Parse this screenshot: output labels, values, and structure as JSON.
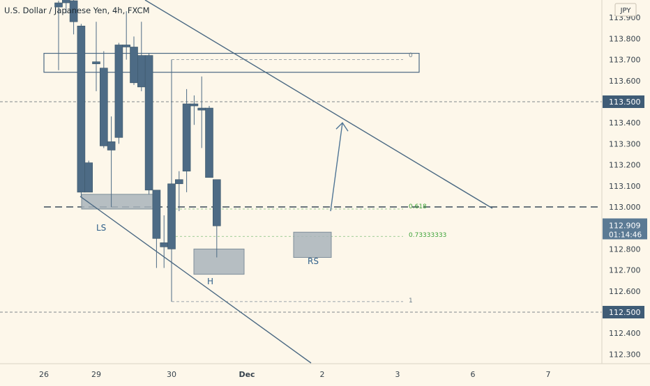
{
  "header": {
    "symbol_title": "U.S. Dollar / Japanese Yen, 4h, FXCM",
    "currency_badge": "JPY"
  },
  "colors": {
    "background": "#fdf7ea",
    "candle": "#4d6b85",
    "trendline": "#4a6882",
    "zone_fill": "#a9b4bb",
    "fib_label": "#3fa33a",
    "price_badge": "#3f5c76"
  },
  "price_axis": {
    "ticks": [
      "113.900",
      "113.800",
      "113.700",
      "113.600",
      "113.400",
      "113.300",
      "113.200",
      "113.100",
      "113.000",
      "112.800",
      "112.700",
      "112.600",
      "112.400",
      "112.300"
    ],
    "tick_values": [
      113.9,
      113.8,
      113.7,
      113.6,
      113.4,
      113.3,
      113.2,
      113.1,
      113.0,
      112.8,
      112.7,
      112.6,
      112.4,
      112.3
    ],
    "badges": [
      {
        "value": 113.5,
        "label": "113.500"
      },
      {
        "value": 112.5,
        "label": "112.500"
      }
    ],
    "current_price": {
      "value": 112.909,
      "label": "112.909",
      "countdown": "01:14:46"
    }
  },
  "time_axis": {
    "labels": [
      "26",
      "29",
      "30",
      "Dec",
      "2",
      "3",
      "6",
      "7"
    ],
    "label_bars": [
      -5,
      5,
      15,
      25,
      35,
      45,
      55,
      65
    ]
  },
  "annotations": {
    "left_shoulder": "LS",
    "head": "H",
    "right_shoulder": "RS",
    "fib_0": "0",
    "fib_0618": "0.618",
    "fib_0733": "0.73333333",
    "fib_1": "1"
  },
  "chart_data": {
    "type": "candlestick",
    "title": "U.S. Dollar / Japanese Yen, 4h, FXCM",
    "price_range": [
      112.25,
      113.97
    ],
    "horizontal_levels": [
      113.5,
      113.0,
      112.5
    ],
    "fib_levels": [
      {
        "label": "0",
        "price": 113.7
      },
      {
        "label": "0.618",
        "price": 112.99
      },
      {
        "label": "0.73333333",
        "price": 112.86
      },
      {
        "label": "1",
        "price": 112.55
      }
    ],
    "candles": [
      {
        "o": 113.95,
        "h": 113.98,
        "l": 113.65,
        "c": 113.97
      },
      {
        "o": 113.97,
        "h": 114.05,
        "l": 113.92,
        "c": 113.99
      },
      {
        "o": 113.98,
        "h": 114.0,
        "l": 113.82,
        "c": 113.88
      },
      {
        "o": 113.86,
        "h": 113.87,
        "l": 113.05,
        "c": 113.07
      },
      {
        "o": 113.07,
        "h": 113.22,
        "l": 113.07,
        "c": 113.21
      },
      {
        "o": 113.68,
        "h": 113.88,
        "l": 113.55,
        "c": 113.69
      },
      {
        "o": 113.66,
        "h": 113.74,
        "l": 113.28,
        "c": 113.29
      },
      {
        "o": 113.27,
        "h": 113.43,
        "l": 113.0,
        "c": 113.31
      },
      {
        "o": 113.33,
        "h": 113.78,
        "l": 113.3,
        "c": 113.77
      },
      {
        "o": 113.77,
        "h": 113.93,
        "l": 113.7,
        "c": 113.76
      },
      {
        "o": 113.76,
        "h": 113.81,
        "l": 113.58,
        "c": 113.59
      },
      {
        "o": 113.72,
        "h": 113.88,
        "l": 113.55,
        "c": 113.57
      },
      {
        "o": 113.72,
        "h": 113.73,
        "l": 113.06,
        "c": 113.08
      },
      {
        "o": 113.08,
        "h": 113.08,
        "l": 112.71,
        "c": 112.85
      },
      {
        "o": 112.83,
        "h": 112.96,
        "l": 112.71,
        "c": 112.81
      },
      {
        "o": 112.8,
        "h": 113.7,
        "l": 112.55,
        "c": 113.11
      },
      {
        "o": 113.11,
        "h": 113.17,
        "l": 112.98,
        "c": 113.13
      },
      {
        "o": 113.17,
        "h": 113.56,
        "l": 113.07,
        "c": 113.49
      },
      {
        "o": 113.49,
        "h": 113.53,
        "l": 113.39,
        "c": 113.48
      },
      {
        "o": 113.47,
        "h": 113.62,
        "l": 113.28,
        "c": 113.46
      },
      {
        "o": 113.47,
        "h": 113.48,
        "l": 113.14,
        "c": 113.14
      },
      {
        "o": 113.13,
        "h": 113.13,
        "l": 112.76,
        "c": 112.91
      }
    ]
  }
}
